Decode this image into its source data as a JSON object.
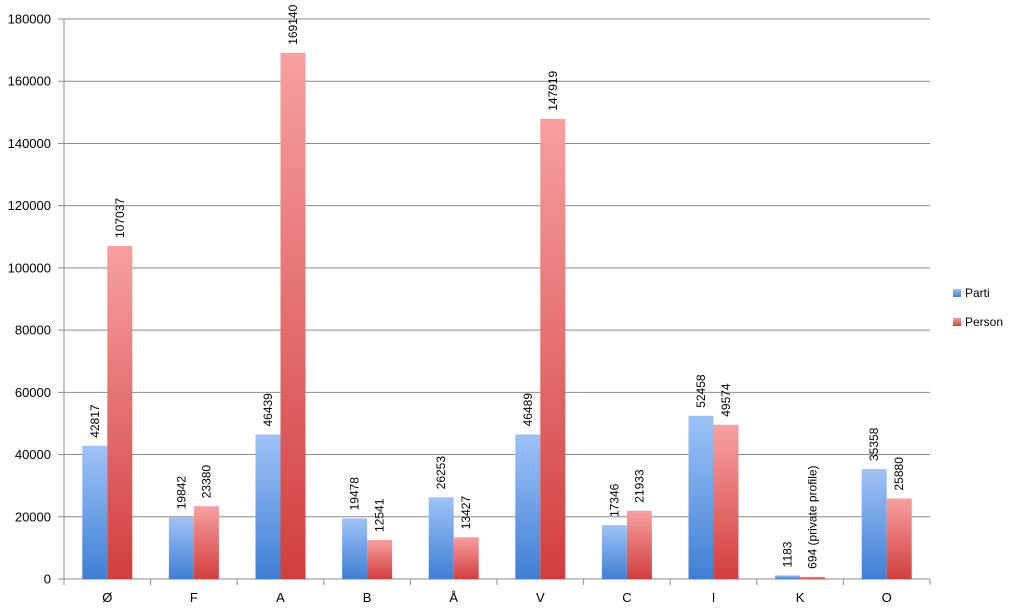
{
  "chart_data": {
    "type": "bar",
    "title": "",
    "xlabel": "",
    "ylabel": "",
    "categories": [
      "Ø",
      "F",
      "A",
      "B",
      "Å",
      "V",
      "C",
      "I",
      "K",
      "O"
    ],
    "series": [
      {
        "name": "Parti",
        "values": [
          42817,
          19842,
          46439,
          19478,
          26253,
          46489,
          17346,
          52458,
          1183,
          35358
        ],
        "labels": [
          "42817",
          "19842",
          "46439",
          "19478",
          "26253",
          "46489",
          "17346",
          "52458",
          "1183",
          "35358"
        ],
        "color_top": "#9fc3f7",
        "color_bottom": "#3f7fd4"
      },
      {
        "name": "Person",
        "values": [
          107037,
          23380,
          169140,
          12541,
          13427,
          147919,
          21933,
          49574,
          694,
          25880
        ],
        "labels": [
          "107037",
          "23380",
          "169140",
          "12541",
          "13427",
          "147919",
          "21933",
          "49574",
          "694 (private profile)",
          "25880"
        ],
        "color_top": "#f7a0a0",
        "color_bottom": "#d23e3e"
      }
    ],
    "ylim": [
      0,
      180000
    ],
    "yticks": [
      0,
      20000,
      40000,
      60000,
      80000,
      100000,
      120000,
      140000,
      160000,
      180000
    ],
    "grid": true,
    "legend": "right"
  }
}
